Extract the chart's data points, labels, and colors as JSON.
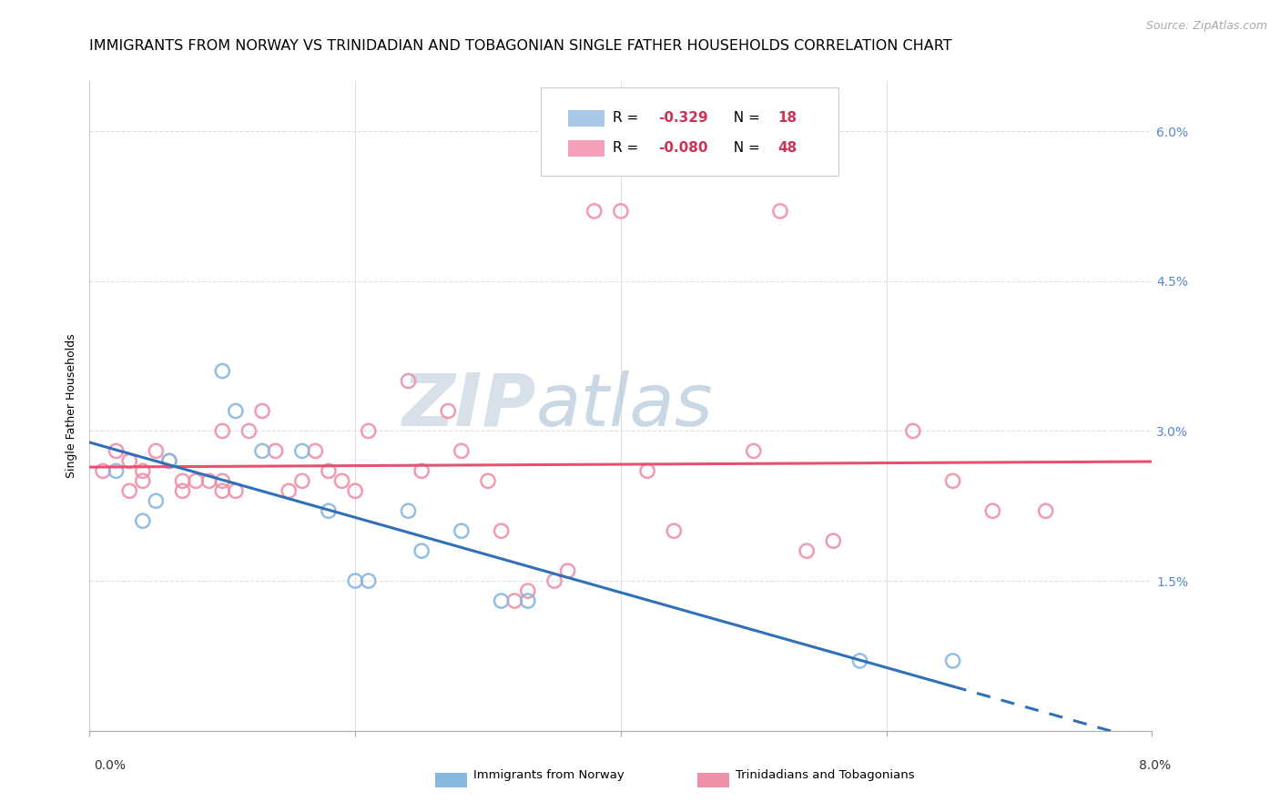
{
  "title": "IMMIGRANTS FROM NORWAY VS TRINIDADIAN AND TOBAGONIAN SINGLE FATHER HOUSEHOLDS CORRELATION CHART",
  "source": "Source: ZipAtlas.com",
  "ylabel": "Single Father Households",
  "right_yticklabels": [
    "",
    "1.5%",
    "3.0%",
    "4.5%",
    "6.0%"
  ],
  "right_ytick_vals": [
    0.0,
    0.015,
    0.03,
    0.045,
    0.06
  ],
  "legend_entry1": "R = –0.329   N = 18",
  "legend_entry2": "R = –0.080   N = 48",
  "legend_color1": "#a8c8e8",
  "legend_color2": "#f4a0b8",
  "norway_color": "#88b8e0",
  "trinidad_color": "#f090a8",
  "norway_line_color": "#3070b8",
  "trinidad_line_color": "#e85070",
  "watermark_zip": "ZIP",
  "watermark_atlas": "atlas",
  "norway_points": [
    [
      0.002,
      0.026
    ],
    [
      0.004,
      0.021
    ],
    [
      0.005,
      0.023
    ],
    [
      0.006,
      0.027
    ],
    [
      0.01,
      0.036
    ],
    [
      0.011,
      0.032
    ],
    [
      0.013,
      0.028
    ],
    [
      0.016,
      0.028
    ],
    [
      0.018,
      0.022
    ],
    [
      0.02,
      0.015
    ],
    [
      0.021,
      0.015
    ],
    [
      0.024,
      0.022
    ],
    [
      0.025,
      0.018
    ],
    [
      0.028,
      0.02
    ],
    [
      0.031,
      0.013
    ],
    [
      0.033,
      0.013
    ],
    [
      0.058,
      0.007
    ],
    [
      0.065,
      0.007
    ]
  ],
  "trinidad_points": [
    [
      0.001,
      0.026
    ],
    [
      0.002,
      0.028
    ],
    [
      0.003,
      0.027
    ],
    [
      0.003,
      0.024
    ],
    [
      0.004,
      0.026
    ],
    [
      0.004,
      0.025
    ],
    [
      0.005,
      0.028
    ],
    [
      0.006,
      0.027
    ],
    [
      0.007,
      0.025
    ],
    [
      0.007,
      0.024
    ],
    [
      0.008,
      0.025
    ],
    [
      0.009,
      0.025
    ],
    [
      0.01,
      0.03
    ],
    [
      0.01,
      0.024
    ],
    [
      0.01,
      0.025
    ],
    [
      0.011,
      0.024
    ],
    [
      0.012,
      0.03
    ],
    [
      0.013,
      0.032
    ],
    [
      0.014,
      0.028
    ],
    [
      0.015,
      0.024
    ],
    [
      0.016,
      0.025
    ],
    [
      0.017,
      0.028
    ],
    [
      0.018,
      0.026
    ],
    [
      0.019,
      0.025
    ],
    [
      0.02,
      0.024
    ],
    [
      0.021,
      0.03
    ],
    [
      0.024,
      0.035
    ],
    [
      0.025,
      0.026
    ],
    [
      0.027,
      0.032
    ],
    [
      0.028,
      0.028
    ],
    [
      0.03,
      0.025
    ],
    [
      0.031,
      0.02
    ],
    [
      0.032,
      0.013
    ],
    [
      0.033,
      0.014
    ],
    [
      0.035,
      0.015
    ],
    [
      0.036,
      0.016
    ],
    [
      0.038,
      0.052
    ],
    [
      0.04,
      0.052
    ],
    [
      0.042,
      0.026
    ],
    [
      0.044,
      0.02
    ],
    [
      0.05,
      0.028
    ],
    [
      0.052,
      0.052
    ],
    [
      0.054,
      0.018
    ],
    [
      0.056,
      0.019
    ],
    [
      0.062,
      0.03
    ],
    [
      0.065,
      0.025
    ],
    [
      0.068,
      0.022
    ],
    [
      0.072,
      0.022
    ]
  ],
  "xlim": [
    0.0,
    0.08
  ],
  "ylim": [
    0.0,
    0.065
  ],
  "norway_line_x_end_solid": 0.065,
  "norway_line_x_start": 0.0,
  "norway_line_x_end_dash": 0.08,
  "grid_color": "#e0e0e0",
  "background_color": "#ffffff",
  "title_fontsize": 11.5,
  "axis_label_fontsize": 9,
  "tick_fontsize": 10,
  "source_fontsize": 9
}
